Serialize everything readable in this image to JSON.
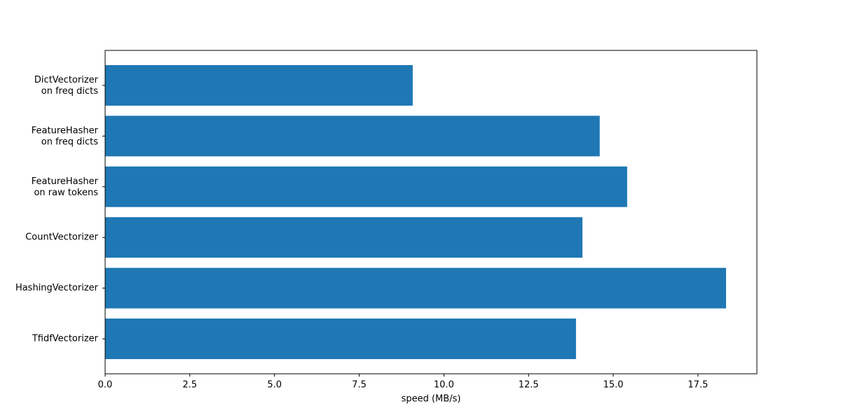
{
  "chart_data": {
    "type": "barh",
    "categories": [
      "DictVectorizer\non freq dicts",
      "FeatureHasher\non freq dicts",
      "FeatureHasher\non raw tokens",
      "CountVectorizer",
      "HashingVectorizer",
      "TfidfVectorizer"
    ],
    "values": [
      9.08,
      14.6,
      15.41,
      14.09,
      18.33,
      13.9
    ],
    "color": "#1f77b4",
    "xlabel": "speed (MB/s)",
    "xlim": [
      0,
      19.24
    ],
    "xticks": [
      {
        "value": 0,
        "label": "0.0"
      },
      2.5,
      {
        "value": 5,
        "label": "5.0"
      },
      7.5,
      {
        "value": 10,
        "label": "10.0"
      },
      12.5,
      {
        "value": 15,
        "label": "15.0"
      },
      17.5
    ]
  }
}
